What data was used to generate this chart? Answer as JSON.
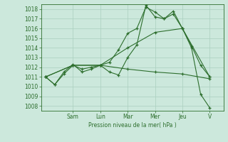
{
  "background_color": "#cce8dc",
  "grid_color": "#aacfbf",
  "line_color": "#2d6e2d",
  "xlabel": "Pression niveau de la mer( hPa )",
  "ylim": [
    1007.5,
    1018.5
  ],
  "yticks": [
    1008,
    1009,
    1010,
    1011,
    1012,
    1013,
    1014,
    1015,
    1016,
    1017,
    1018
  ],
  "day_labels": [
    "Sam",
    "Lun",
    "Mar",
    "Mer",
    "Jeu",
    "V"
  ],
  "day_positions": [
    3,
    6,
    9,
    12,
    15,
    18
  ],
  "xlim": [
    -0.5,
    19.5
  ],
  "series": [
    {
      "x": [
        0,
        1,
        2,
        3,
        4,
        5,
        6,
        7,
        8,
        9,
        10,
        11,
        12,
        13,
        14,
        15,
        16,
        17,
        18
      ],
      "y": [
        1011.0,
        1010.2,
        1011.3,
        1012.2,
        1011.8,
        1012.0,
        1012.2,
        1012.5,
        1013.8,
        1015.5,
        1016.0,
        1018.2,
        1017.7,
        1017.0,
        1017.5,
        1016.0,
        1014.2,
        1012.2,
        1011.0
      ]
    },
    {
      "x": [
        0,
        1,
        2,
        3,
        4,
        5,
        6,
        7,
        8,
        9,
        10,
        11,
        12,
        13,
        14,
        15,
        16,
        17,
        18
      ],
      "y": [
        1011.0,
        1010.2,
        1011.5,
        1012.3,
        1011.5,
        1011.8,
        1012.2,
        1011.5,
        1011.2,
        1013.0,
        1014.3,
        1018.4,
        1017.2,
        1017.0,
        1017.8,
        1016.0,
        1014.0,
        1009.2,
        1007.8
      ]
    },
    {
      "x": [
        0,
        3,
        6,
        9,
        12,
        15,
        18
      ],
      "y": [
        1011.0,
        1012.2,
        1012.2,
        1014.0,
        1015.6,
        1016.0,
        1011.0
      ]
    },
    {
      "x": [
        0,
        3,
        6,
        9,
        12,
        15,
        18
      ],
      "y": [
        1011.0,
        1012.2,
        1012.2,
        1011.8,
        1011.5,
        1011.3,
        1010.8
      ]
    }
  ]
}
